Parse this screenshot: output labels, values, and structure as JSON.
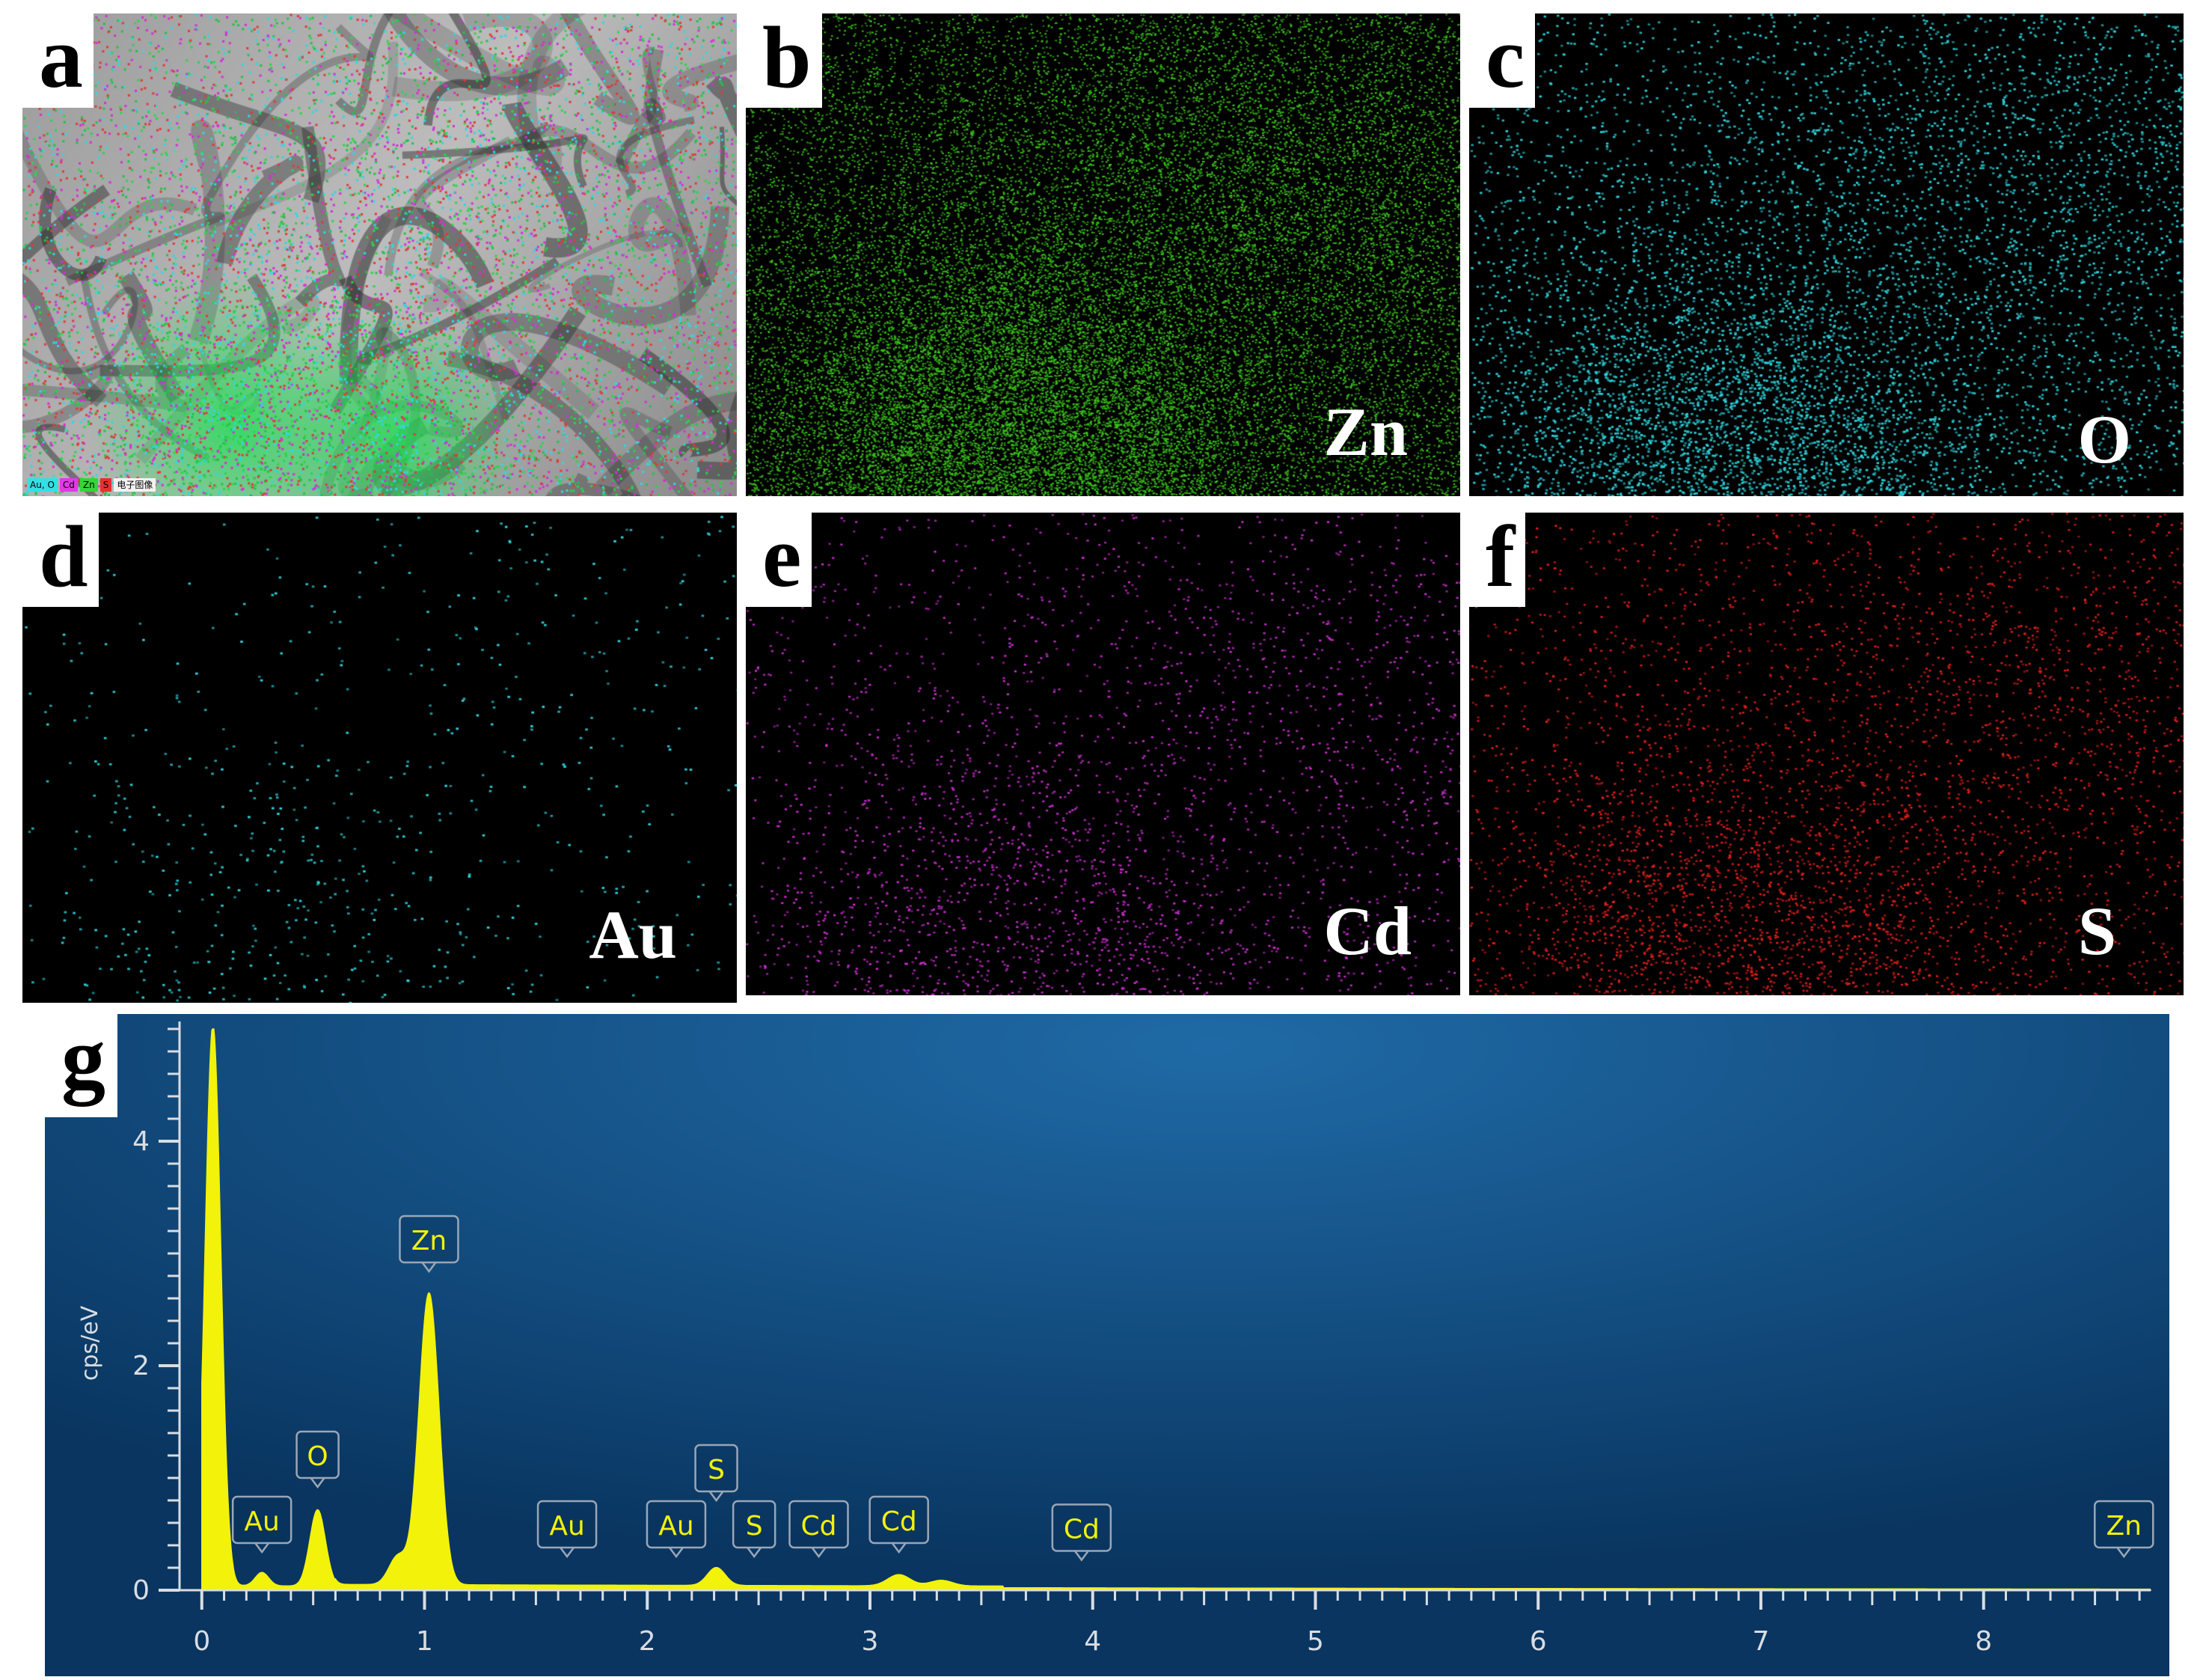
{
  "panels": [
    {
      "id": "a",
      "letter": "a",
      "element": "",
      "color": "#2bd64a",
      "legend": [
        "Au, O",
        "Cd",
        "Zn",
        "S",
        "电子图像"
      ]
    },
    {
      "id": "b",
      "letter": "b",
      "element": "Zn",
      "color": "#3ec91e"
    },
    {
      "id": "c",
      "letter": "c",
      "element": "O",
      "color": "#2fd6e0"
    },
    {
      "id": "d",
      "letter": "d",
      "element": "Au",
      "color": "#2fd6e0"
    },
    {
      "id": "e",
      "letter": "e",
      "element": "Cd",
      "color": "#d12fd6"
    },
    {
      "id": "f",
      "letter": "f",
      "element": "S",
      "color": "#e8201a"
    }
  ],
  "legend_colors": [
    "#33e0e6",
    "#e03ae6",
    "#37d43a",
    "#e83030",
    "#f2f2f2"
  ],
  "spectrum": {
    "letter": "g",
    "ylabel": "cps/eV",
    "colors": {
      "background": "#0b3a66",
      "fill": "#f2f20a",
      "axis": "#d9dde3",
      "label_box": "#9aa6b6",
      "label_text": "#f2f20a"
    }
  },
  "chart_data": {
    "type": "area",
    "xlabel": "",
    "ylabel": "cps/eV",
    "xlim": [
      -0.1,
      8.75
    ],
    "ylim": [
      0,
      5
    ],
    "xticks": [
      "0",
      "1",
      "2",
      "3",
      "4",
      "5",
      "6",
      "7",
      "8"
    ],
    "yticks": [
      "0",
      "2",
      "4"
    ],
    "peaks": [
      {
        "x": 0.05,
        "y": 5.0,
        "width": 0.035
      },
      {
        "x": 0.27,
        "y": 0.12,
        "width": 0.03
      },
      {
        "x": 0.52,
        "y": 0.68,
        "width": 0.035
      },
      {
        "x": 0.88,
        "y": 0.25,
        "width": 0.04
      },
      {
        "x": 1.02,
        "y": 2.6,
        "width": 0.045
      },
      {
        "x": 2.31,
        "y": 0.16,
        "width": 0.04
      },
      {
        "x": 3.13,
        "y": 0.1,
        "width": 0.05
      },
      {
        "x": 3.32,
        "y": 0.05,
        "width": 0.05
      }
    ],
    "baseline": 0.04,
    "annotations": [
      {
        "label": "Au",
        "x": 0.27,
        "y": 0.42
      },
      {
        "label": "O",
        "x": 0.52,
        "y": 1.0
      },
      {
        "label": "Zn",
        "x": 1.02,
        "y": 2.92
      },
      {
        "label": "Au",
        "x": 1.64,
        "y": 0.38
      },
      {
        "label": "Au",
        "x": 2.13,
        "y": 0.38
      },
      {
        "label": "S",
        "x": 2.31,
        "y": 0.88
      },
      {
        "label": "S",
        "x": 2.48,
        "y": 0.38
      },
      {
        "label": "Cd",
        "x": 2.77,
        "y": 0.38
      },
      {
        "label": "Cd",
        "x": 3.13,
        "y": 0.42
      },
      {
        "label": "Cd",
        "x": 3.95,
        "y": 0.35
      },
      {
        "label": "Zn",
        "x": 8.63,
        "y": 0.38
      }
    ]
  }
}
